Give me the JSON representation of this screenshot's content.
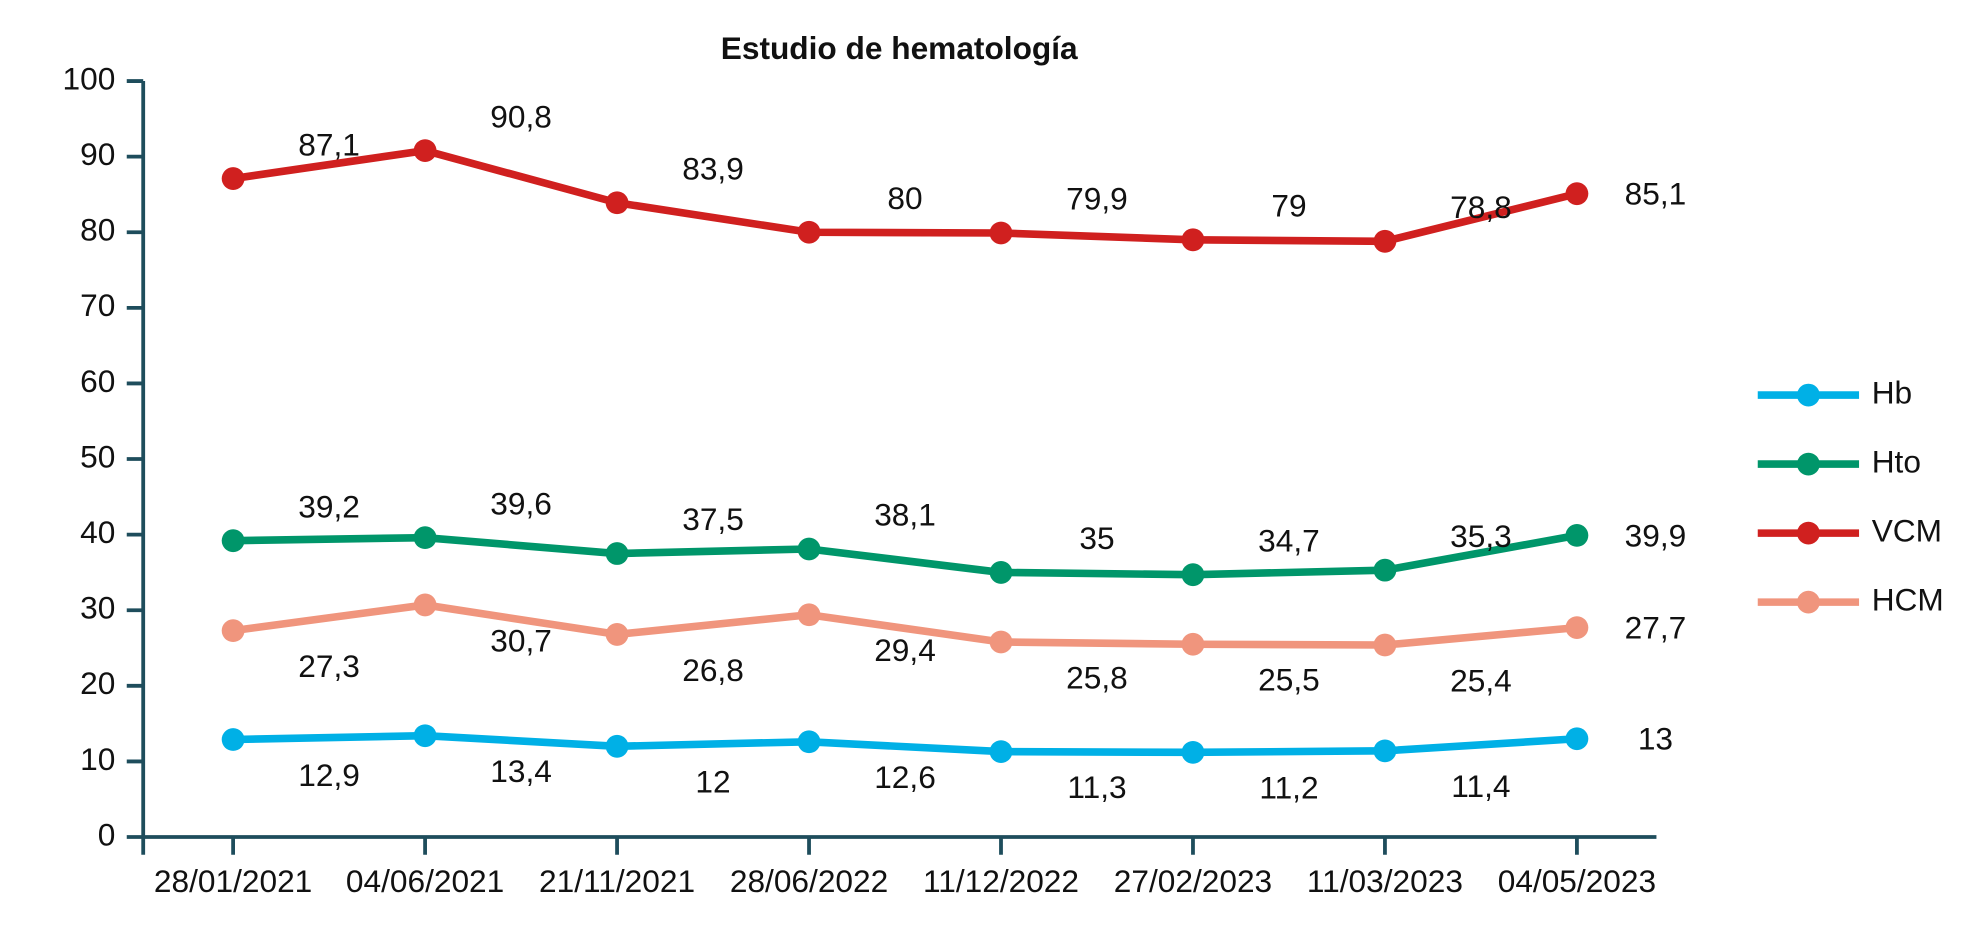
{
  "chart_data": {
    "type": "line",
    "title": "Estudio de hematología",
    "categories": [
      "28/01/2021",
      "04/06/2021",
      "21/11/2021",
      "28/06/2022",
      "11/12/2022",
      "27/02/2023",
      "11/03/2023",
      "04/05/2023"
    ],
    "series": [
      {
        "name": "Hb",
        "color": "#00b0e6",
        "values": [
          12.9,
          13.4,
          12,
          12.6,
          11.3,
          11.2,
          11.4,
          13
        ],
        "value_labels": [
          "12,9",
          "13,4",
          "12",
          "12,6",
          "11,3",
          "11,2",
          "11,4",
          "13"
        ]
      },
      {
        "name": "Hto",
        "color": "#00966a",
        "values": [
          39.2,
          39.6,
          37.5,
          38.1,
          35,
          34.7,
          35.3,
          39.9
        ],
        "value_labels": [
          "39,2",
          "39,6",
          "37,5",
          "38,1",
          "35",
          "34,7",
          "35,3",
          "39,9"
        ]
      },
      {
        "name": "VCM",
        "color": "#d0201f",
        "values": [
          87.1,
          90.8,
          83.9,
          80,
          79.9,
          79,
          78.8,
          85.1
        ],
        "value_labels": [
          "87,1",
          "90,8",
          "83,9",
          "80",
          "79,9",
          "79",
          "78,8",
          "85,1"
        ]
      },
      {
        "name": "HCM",
        "color": "#f0957d",
        "values": [
          27.3,
          30.7,
          26.8,
          29.4,
          25.8,
          25.5,
          25.4,
          27.7
        ],
        "value_labels": [
          "27,3",
          "30,7",
          "26,8",
          "29,4",
          "25,8",
          "25,5",
          "25,4",
          "27,7"
        ]
      }
    ],
    "ylim": [
      0,
      100
    ],
    "yticks": [
      0,
      10,
      20,
      30,
      40,
      50,
      60,
      70,
      80,
      90,
      100
    ],
    "legend": "right"
  }
}
